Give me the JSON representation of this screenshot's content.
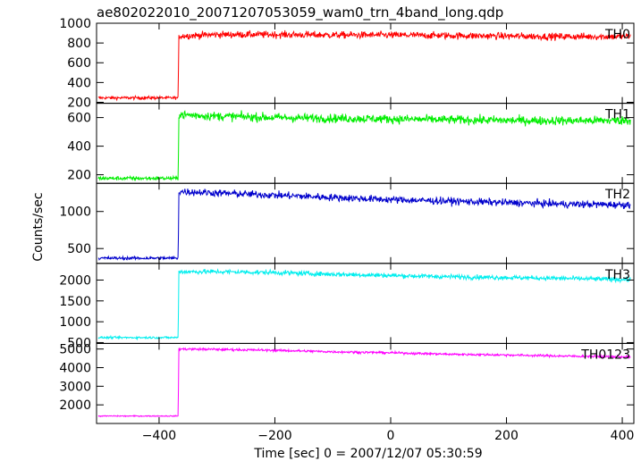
{
  "chart_data": {
    "type": "line",
    "title": "ae802022010_20071207053059_wam0_trn_4band_long.qdp",
    "xlabel": "Time [sec] 0 = 2007/12/07 05:30:59",
    "ylabel": "Counts/sec",
    "xlim": [
      -508,
      420
    ],
    "x_ticks": [
      -400,
      -200,
      0,
      200,
      400
    ],
    "x_tick_labels": [
      "−400",
      "−200",
      "0",
      "200",
      "400"
    ],
    "grid": false,
    "legend": "none",
    "event_time": -367,
    "panels": [
      {
        "name": "TH0",
        "color": "#ff0000",
        "ylim": [
          190,
          1000
        ],
        "yticks": [
          200,
          400,
          600,
          800,
          1000
        ],
        "ytick_labels": [
          "200",
          "400",
          "600",
          "800",
          "1000"
        ],
        "x": [
          -505,
          -367,
          -366,
          -300,
          -200,
          -100,
          0,
          100,
          200,
          300,
          415
        ],
        "y": [
          245,
          245,
          870,
          885,
          885,
          880,
          880,
          875,
          870,
          865,
          865
        ],
        "noise": 25
      },
      {
        "name": "TH1",
        "color": "#00ee00",
        "ylim": [
          140,
          700
        ],
        "yticks": [
          200,
          400,
          600
        ],
        "ytick_labels": [
          "200",
          "400",
          "600"
        ],
        "x": [
          -505,
          -367,
          -366,
          -300,
          -200,
          -100,
          0,
          100,
          200,
          300,
          415
        ],
        "y": [
          175,
          175,
          620,
          610,
          600,
          595,
          590,
          585,
          580,
          578,
          580
        ],
        "noise": 22
      },
      {
        "name": "TH2",
        "color": "#0000cc",
        "ylim": [
          300,
          1380
        ],
        "yticks": [
          500,
          1000
        ],
        "ytick_labels": [
          "500",
          "1000"
        ],
        "x": [
          -505,
          -367,
          -366,
          -300,
          -200,
          -100,
          0,
          100,
          200,
          300,
          415
        ],
        "y": [
          370,
          370,
          1270,
          1250,
          1220,
          1190,
          1160,
          1140,
          1120,
          1100,
          1090
        ],
        "noise": 35
      },
      {
        "name": "TH3",
        "color": "#00eeee",
        "ylim": [
          480,
          2400
        ],
        "yticks": [
          500,
          1000,
          1500,
          2000
        ],
        "ytick_labels": [
          "500",
          "1000",
          "1500",
          "2000"
        ],
        "x": [
          -505,
          -367,
          -366,
          -300,
          -200,
          -100,
          0,
          100,
          200,
          300,
          415
        ],
        "y": [
          620,
          620,
          2200,
          2200,
          2180,
          2140,
          2110,
          2080,
          2060,
          2040,
          2010
        ],
        "noise": 40
      },
      {
        "name": "TH0123",
        "color": "#ff00ff",
        "ylim": [
          1000,
          5300
        ],
        "yticks": [
          2000,
          3000,
          4000,
          5000
        ],
        "ytick_labels": [
          "2000",
          "3000",
          "4000",
          "5000"
        ],
        "x": [
          -505,
          -367,
          -366,
          -300,
          -200,
          -100,
          0,
          100,
          200,
          300,
          415
        ],
        "y": [
          1400,
          1400,
          5000,
          4980,
          4930,
          4850,
          4800,
          4720,
          4680,
          4620,
          4580
        ],
        "noise": 45
      }
    ]
  }
}
